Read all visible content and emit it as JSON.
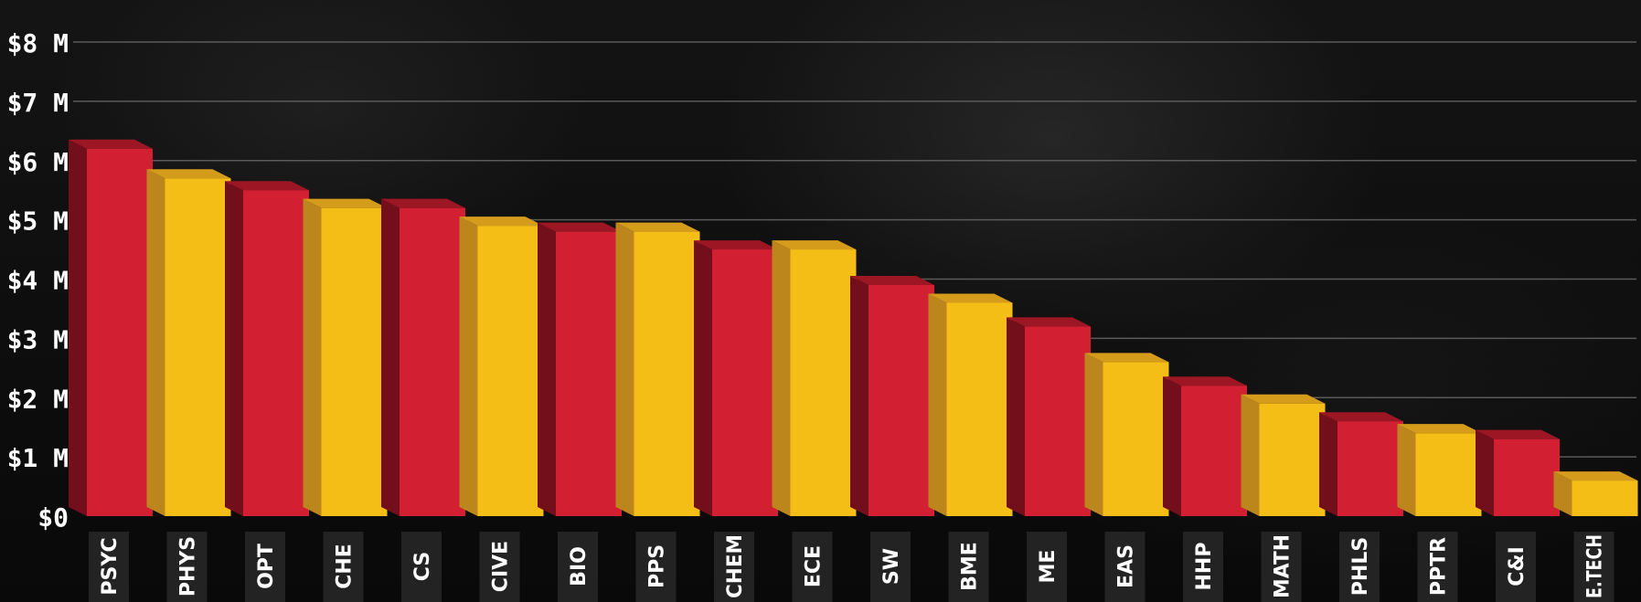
{
  "chart_data": {
    "type": "bar",
    "title": "",
    "xlabel": "",
    "ylabel": "",
    "categories": [
      "PSYC",
      "PHYS",
      "OPT",
      "CHE",
      "CS",
      "CIVE",
      "BIO",
      "PPS",
      "CHEM",
      "ECE",
      "SW",
      "BME",
      "ME",
      "EAS",
      "HHP",
      "MATH",
      "PHLS",
      "PPTR",
      "C&I",
      "E.TECH"
    ],
    "values": [
      6.2,
      5.7,
      5.5,
      5.2,
      5.2,
      4.9,
      4.8,
      4.8,
      4.5,
      4.5,
      3.9,
      3.6,
      3.2,
      2.6,
      2.2,
      1.9,
      1.6,
      1.4,
      1.3,
      0.6
    ],
    "ylim": [
      0,
      8
    ],
    "y_ticks": [
      0,
      1,
      2,
      3,
      4,
      5,
      6,
      7,
      8
    ],
    "y_tick_labels": [
      "$0",
      "$1 M",
      "$2 M",
      "$3 M",
      "$4 M",
      "$5 M",
      "$6 M",
      "$7 M",
      "$8 M"
    ],
    "grid": true,
    "bar_colors": [
      "#d21f32",
      "#f5be17"
    ],
    "bar_side_colors": [
      "#730f1b",
      "#bd861d"
    ],
    "bar_top_colors": [
      "#9c1624",
      "#d59b1a"
    ],
    "label_box_color": "#232323",
    "grid_color": "#5a5a5a"
  }
}
